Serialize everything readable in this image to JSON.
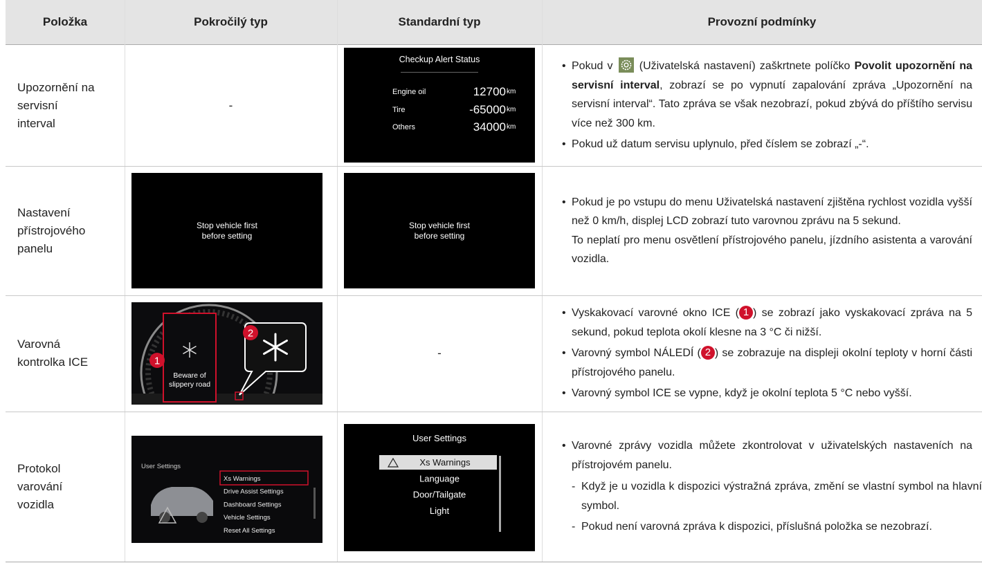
{
  "header": [
    "Položka",
    "Pokročilý typ",
    "Standardní typ",
    "Provozní podmínky"
  ],
  "rows": [
    {
      "item": "Upozornění na servisní interval",
      "advanced": "-",
      "standard": {
        "title": "Checkup Alert Status",
        "entries": [
          {
            "label": "Engine oil",
            "value": "12700",
            "unit": "km"
          },
          {
            "label": "Tire",
            "value": "-65000",
            "unit": "km"
          },
          {
            "label": "Others",
            "value": "34000",
            "unit": "km"
          }
        ]
      },
      "conditions": [
        [
          "Pokud v",
          "(Uživatelská nastavení) zaškrtnete políčko",
          "Povolit upozornění na servisní interval",
          ", zobrazí se po vypnutí zapalování zpráva „Upozornění na servisní interval“. Tato zpráva se však nezobrazí, pokud zbývá do příštího servisu více než 300 km."
        ],
        [
          "Pokud už datum servisu uplynulo, před číslem se zobrazí „-“."
        ]
      ]
    },
    {
      "item": "Nastavení přístrojového panelu",
      "advanced": [
        "Stop vehicle first",
        "before setting"
      ],
      "standard": [
        "Stop vehicle first",
        "before setting"
      ],
      "conditions": [
        [
          "Pokud je po vstupu do menu Uživatelská nastavení zjištěna rychlost vozidla vyšší než 0 km/h, displej LCD zobrazí tuto varovnou zprávu na 5 sekund.",
          "To neplatí pro menu osvětlení přístrojového panelu, jízdního asistenta a varování vozidla."
        ]
      ]
    },
    {
      "item": "Varovná kontrolka ICE",
      "advanced": {
        "marker1": "1",
        "marker2": "2",
        "message": "Beware of slippery road"
      },
      "standard": "-",
      "conditions": [
        [
          "Vyskakovací varovné okno ICE (",
          "1",
          ") se zobrazí jako vyskakovací zpráva na 5 sekund, pokud teplota okolí klesne na 3 °C či nižší."
        ],
        [
          "Varovný symbol NÁLEDÍ (",
          "2",
          ") se zobrazuje na displeji okolní teploty v horní části přístrojového panelu."
        ],
        [
          "Varovný symbol ICE se vypne, když je okolní teplota 5 °C nebo vyšší."
        ]
      ]
    },
    {
      "item": "Protokol varování vozidla",
      "advanced": {
        "title": "User Settings",
        "menu": [
          "Xs Warnings",
          "Drive Assist Settings",
          "Dashboard Settings",
          "Vehicle Settings",
          "Reset All Settings"
        ]
      },
      "standard": {
        "title": "User Settings",
        "menu": [
          "Xs Warnings",
          "Language",
          "Door/Tailgate",
          "Light"
        ]
      },
      "conditions": [
        {
          "text": "Varovné zprávy vozidla můžete zkontrolovat v uživatelských nastaveních na přístrojovém panelu.",
          "sub": [
            "Když je u vozidla k dispozici výstražná zpráva, změní se vlastní symbol na hlavní symbol.",
            "Pokud není varovná zpráva k dispozici, příslušná položka se nezobrazí."
          ]
        }
      ]
    }
  ]
}
